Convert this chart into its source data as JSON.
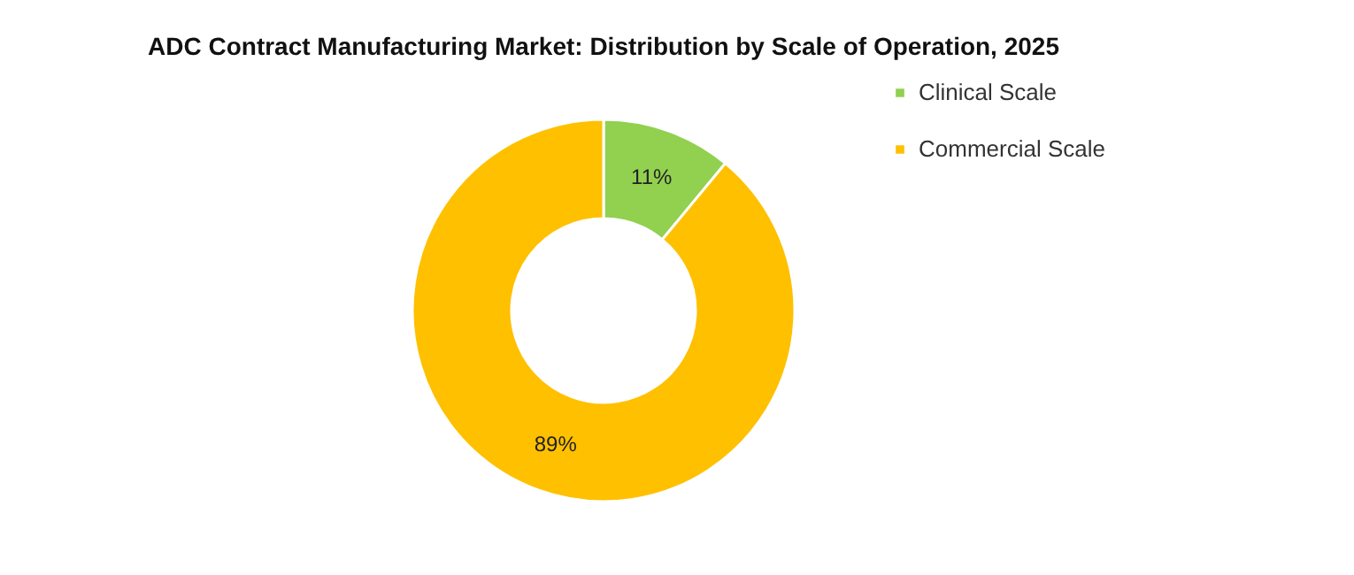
{
  "chart_data": {
    "type": "donut",
    "title": "ADC Contract Manufacturing Market: Distribution by Scale of Operation, 2025",
    "categories": [
      "Clinical Scale",
      "Commercial Scale"
    ],
    "values": [
      11,
      89
    ],
    "colors": [
      "#92d050",
      "#ffc000"
    ],
    "value_labels": [
      "11%",
      "89%"
    ],
    "legend": "right"
  }
}
